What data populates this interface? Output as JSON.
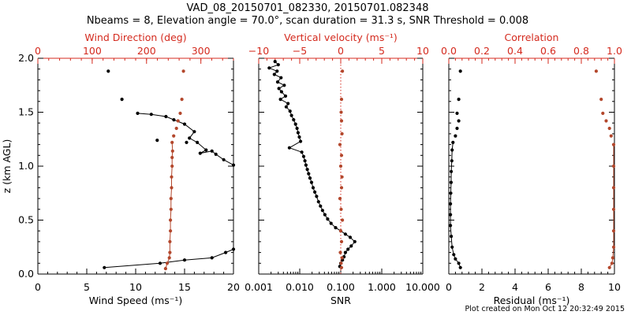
{
  "figure": {
    "title_line1": "VAD_08_20150701_082330, 20150701.082348",
    "title_line2": "Nbeams = 8, Elevation angle = 70.0°, scan duration = 31.3 s, SNR Threshold = 0.008",
    "credit": "Plot created on Mon Oct 12 20:32:49 2015",
    "colors": {
      "black": "#000000",
      "red": "#d42a1e",
      "brown": "#b3472c"
    }
  },
  "chart_data": [
    {
      "type": "line",
      "panel": "wind",
      "ylabel": "z (km AGL)",
      "ylim": [
        0,
        2
      ],
      "yticks": [
        "0.0",
        "0.5",
        "1.0",
        "1.5",
        "2.0"
      ],
      "bottom_axis": {
        "label": "Wind Speed (ms⁻¹)",
        "range": [
          0,
          20
        ],
        "ticks": [
          "0",
          "5",
          "10",
          "15",
          "20"
        ]
      },
      "top_axis": {
        "label": "Wind Direction (deg)",
        "range": [
          0,
          360
        ],
        "ticks": [
          "0",
          "100",
          "200",
          "300"
        ]
      },
      "series": [
        {
          "axis": "bottom",
          "color": "black",
          "connected": true,
          "points": [
            [
              6.8,
              0.06
            ],
            [
              12.5,
              0.1
            ],
            [
              15.0,
              0.13
            ],
            [
              17.8,
              0.15
            ],
            [
              19.2,
              0.2
            ],
            [
              20.0,
              0.23
            ]
          ]
        },
        {
          "axis": "bottom",
          "color": "black",
          "connected": true,
          "points": [
            [
              10.2,
              1.49
            ],
            [
              11.6,
              1.48
            ],
            [
              13.1,
              1.46
            ],
            [
              15.0,
              1.39
            ],
            [
              16.0,
              1.32
            ],
            [
              15.5,
              1.26
            ],
            [
              16.3,
              1.22
            ],
            [
              17.2,
              1.15
            ],
            [
              16.6,
              1.12
            ],
            [
              17.8,
              1.14
            ],
            [
              18.2,
              1.11
            ],
            [
              19.0,
              1.06
            ],
            [
              20.0,
              1.01
            ]
          ]
        },
        {
          "axis": "bottom",
          "color": "black",
          "connected": false,
          "points": [
            [
              13.9,
              1.43
            ],
            [
              15.2,
              1.22
            ],
            [
              12.2,
              1.24
            ],
            [
              8.6,
              1.62
            ],
            [
              7.2,
              1.88
            ]
          ]
        },
        {
          "axis": "top",
          "color": "brown",
          "connected": true,
          "points": [
            [
              235,
              0.05
            ],
            [
              238,
              0.1
            ],
            [
              242,
              0.15
            ],
            [
              243,
              0.2
            ],
            [
              243,
              0.3
            ],
            [
              244,
              0.4
            ],
            [
              244,
              0.5
            ],
            [
              245,
              0.6
            ],
            [
              245,
              0.7
            ],
            [
              246,
              0.8
            ],
            [
              246,
              0.9
            ],
            [
              247,
              1.0
            ],
            [
              247,
              1.08
            ],
            [
              248,
              1.14
            ],
            [
              247,
              1.22
            ]
          ]
        },
        {
          "axis": "top",
          "color": "brown",
          "connected": false,
          "points": [
            [
              250,
              1.28
            ],
            [
              255,
              1.35
            ],
            [
              258,
              1.42
            ],
            [
              262,
              1.49
            ],
            [
              265,
              1.62
            ],
            [
              268,
              1.88
            ]
          ]
        }
      ]
    },
    {
      "type": "line",
      "panel": "velocity",
      "ylim": [
        0,
        2
      ],
      "bottom_axis": {
        "label": "SNR",
        "scale": "log",
        "range": [
          0.001,
          10
        ],
        "ticks": [
          "0.001",
          "0.010",
          "0.100",
          "1.000",
          "10.000"
        ]
      },
      "top_axis": {
        "label": "Vertical velocity (ms⁻¹)",
        "range": [
          -10,
          10
        ],
        "ticks": [
          "−10",
          "−5",
          "0",
          "5",
          "10"
        ]
      },
      "reference_line": {
        "axis": "top",
        "value": 0,
        "style": "dotted",
        "color": "red"
      },
      "series": [
        {
          "axis": "bottom",
          "color": "black",
          "connected": true,
          "points": [
            [
              0.0025,
              1.97
            ],
            [
              0.003,
              1.94
            ],
            [
              0.0018,
              1.91
            ],
            [
              0.0028,
              1.88
            ],
            [
              0.0024,
              1.85
            ],
            [
              0.0035,
              1.82
            ],
            [
              0.0029,
              1.78
            ],
            [
              0.0042,
              1.75
            ],
            [
              0.0031,
              1.72
            ],
            [
              0.0036,
              1.69
            ],
            [
              0.0045,
              1.65
            ],
            [
              0.0034,
              1.62
            ],
            [
              0.0052,
              1.58
            ],
            [
              0.0047,
              1.55
            ],
            [
              0.0058,
              1.51
            ],
            [
              0.0063,
              1.47
            ],
            [
              0.0071,
              1.43
            ],
            [
              0.0079,
              1.39
            ],
            [
              0.0086,
              1.35
            ],
            [
              0.0091,
              1.31
            ],
            [
              0.0098,
              1.27
            ],
            [
              0.0105,
              1.23
            ],
            [
              0.0056,
              1.17
            ],
            [
              0.0112,
              1.13
            ],
            [
              0.0125,
              1.09
            ],
            [
              0.0134,
              1.05
            ],
            [
              0.0142,
              1.01
            ],
            [
              0.0153,
              0.97
            ],
            [
              0.0165,
              0.93
            ],
            [
              0.0178,
              0.89
            ],
            [
              0.0194,
              0.85
            ],
            [
              0.0212,
              0.8
            ],
            [
              0.0233,
              0.76
            ],
            [
              0.0258,
              0.72
            ],
            [
              0.0287,
              0.67
            ],
            [
              0.0321,
              0.63
            ],
            [
              0.036,
              0.59
            ],
            [
              0.041,
              0.55
            ],
            [
              0.048,
              0.51
            ],
            [
              0.058,
              0.47
            ],
            [
              0.075,
              0.43
            ],
            [
              0.1,
              0.4
            ],
            [
              0.13,
              0.37
            ],
            [
              0.17,
              0.34
            ],
            [
              0.22,
              0.3
            ],
            [
              0.18,
              0.26
            ],
            [
              0.15,
              0.23
            ],
            [
              0.13,
              0.2
            ],
            [
              0.12,
              0.16
            ],
            [
              0.11,
              0.13
            ],
            [
              0.1,
              0.1
            ],
            [
              0.095,
              0.07
            ]
          ]
        },
        {
          "axis": "top",
          "color": "brown",
          "connected": false,
          "points": [
            [
              0.1,
              0.06
            ],
            [
              0.05,
              0.1
            ],
            [
              0.15,
              0.15
            ],
            [
              -0.05,
              0.2
            ],
            [
              0.1,
              0.3
            ],
            [
              0.0,
              0.4
            ],
            [
              0.2,
              0.5
            ],
            [
              0.05,
              0.6
            ],
            [
              -0.1,
              0.7
            ],
            [
              0.1,
              0.8
            ],
            [
              0.15,
              0.9
            ],
            [
              0.0,
              1.0
            ],
            [
              0.1,
              1.1
            ],
            [
              -0.1,
              1.2
            ],
            [
              0.15,
              1.3
            ],
            [
              0.1,
              1.42
            ],
            [
              0.05,
              1.5
            ],
            [
              0.1,
              1.62
            ],
            [
              0.2,
              1.88
            ]
          ]
        }
      ]
    },
    {
      "type": "scatter",
      "panel": "quality",
      "ylim": [
        0,
        2
      ],
      "bottom_axis": {
        "label": "Residual (ms⁻¹)",
        "range": [
          0,
          10
        ],
        "ticks": [
          "0",
          "2",
          "4",
          "6",
          "8",
          "10"
        ]
      },
      "top_axis": {
        "label": "Correlation",
        "range": [
          0,
          1
        ],
        "ticks": [
          "0.0",
          "0.2",
          "0.4",
          "0.6",
          "0.8",
          "1.0"
        ]
      },
      "series": [
        {
          "axis": "bottom",
          "color": "black",
          "connected": true,
          "points": [
            [
              0.7,
              0.06
            ],
            [
              0.6,
              0.1
            ],
            [
              0.4,
              0.14
            ],
            [
              0.3,
              0.18
            ],
            [
              0.2,
              0.25
            ],
            [
              0.15,
              0.35
            ],
            [
              0.1,
              0.45
            ],
            [
              0.1,
              0.55
            ],
            [
              0.1,
              0.65
            ],
            [
              0.12,
              0.75
            ],
            [
              0.14,
              0.85
            ],
            [
              0.15,
              0.95
            ],
            [
              0.18,
              1.05
            ],
            [
              0.2,
              1.15
            ],
            [
              0.25,
              1.22
            ]
          ]
        },
        {
          "axis": "bottom",
          "color": "black",
          "connected": false,
          "points": [
            [
              0.4,
              1.28
            ],
            [
              0.5,
              1.35
            ],
            [
              0.6,
              1.42
            ],
            [
              0.5,
              1.49
            ],
            [
              0.6,
              1.62
            ],
            [
              0.7,
              1.88
            ]
          ]
        },
        {
          "axis": "top",
          "color": "brown",
          "connected": true,
          "points": [
            [
              0.97,
              0.06
            ],
            [
              0.985,
              0.1
            ],
            [
              0.99,
              0.15
            ],
            [
              0.995,
              0.25
            ],
            [
              0.995,
              0.4
            ],
            [
              0.995,
              0.6
            ],
            [
              0.995,
              0.8
            ],
            [
              0.995,
              1.0
            ],
            [
              0.995,
              1.2
            ]
          ]
        },
        {
          "axis": "top",
          "color": "brown",
          "connected": false,
          "points": [
            [
              0.98,
              1.28
            ],
            [
              0.97,
              1.35
            ],
            [
              0.95,
              1.42
            ],
            [
              0.93,
              1.49
            ],
            [
              0.92,
              1.62
            ],
            [
              0.89,
              1.88
            ]
          ]
        }
      ]
    }
  ]
}
